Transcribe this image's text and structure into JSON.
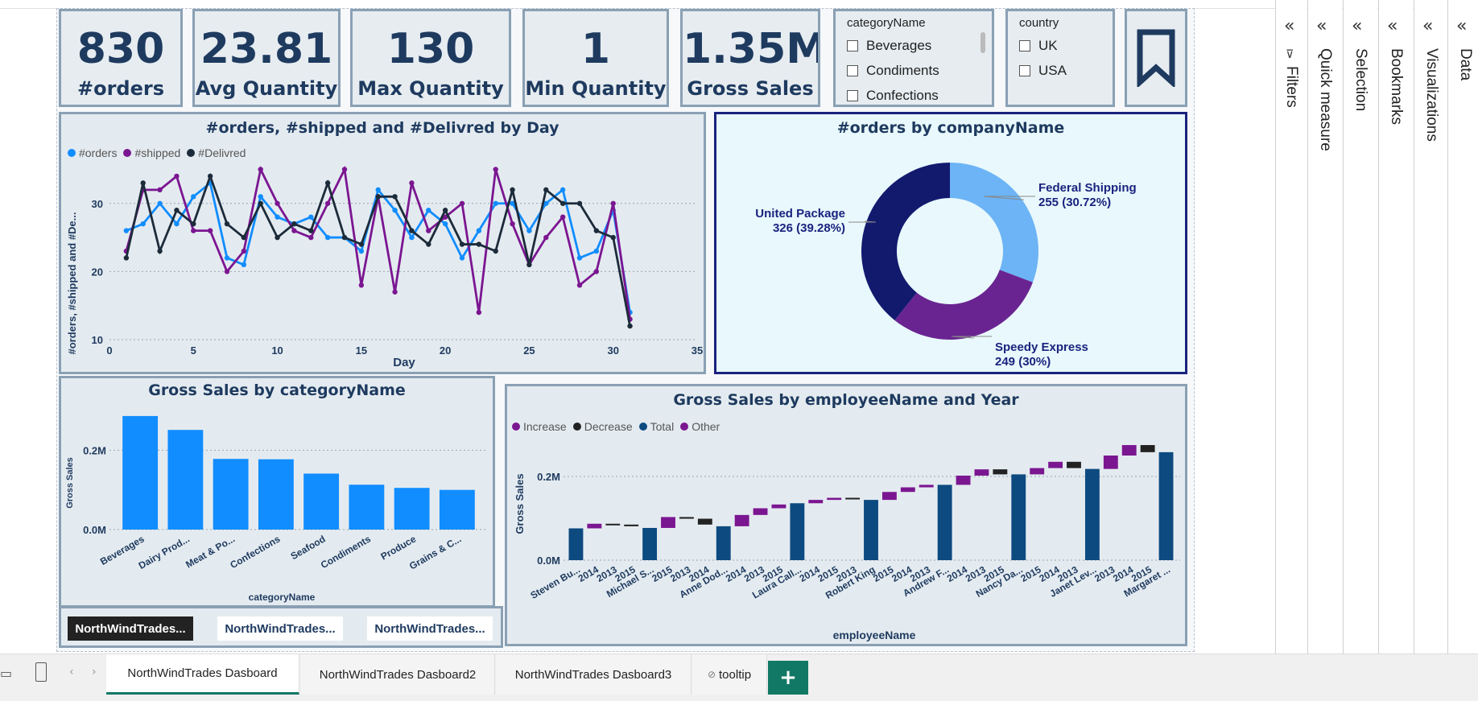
{
  "kpis": [
    {
      "value": "830",
      "label": "#orders"
    },
    {
      "value": "23.81",
      "label": "Avg Quantity"
    },
    {
      "value": "130",
      "label": "Max Quantity"
    },
    {
      "value": "1",
      "label": "Min Quantity"
    },
    {
      "value": "1.35M",
      "label": "Gross Sales"
    }
  ],
  "slicers": {
    "category": {
      "title": "categoryName",
      "items": [
        "Beverages",
        "Condiments",
        "Confections"
      ]
    },
    "country": {
      "title": "country",
      "items": [
        "UK",
        "USA"
      ]
    }
  },
  "line_chart": {
    "title": "#orders, #shipped and #Delivred by Day",
    "ylabel": "#orders, #shipped and #De...",
    "xlabel": "Day",
    "legend": [
      "#orders",
      "#shipped",
      "#Delivred"
    ],
    "xticks": [
      "0",
      "5",
      "10",
      "15",
      "20",
      "25",
      "30",
      "35"
    ],
    "yticks": [
      "10",
      "20",
      "30"
    ]
  },
  "donut_chart": {
    "title": "#orders by companyName",
    "slices": [
      {
        "name": "Federal Shipping",
        "label": "255 (30.72%)",
        "value": 255,
        "color": "#6cb4f5"
      },
      {
        "name": "Speedy Express",
        "label": "249 (30%)",
        "value": 249,
        "color": "#6a2491"
      },
      {
        "name": "United Package",
        "label": "326 (39.28%)",
        "value": 326,
        "color": "#121a6e"
      }
    ]
  },
  "bar_chart": {
    "title": "Gross Sales by categoryName",
    "ylabel": "Gross Sales",
    "xlabel": "categoryName",
    "yticks": [
      "0.0M",
      "0.2M"
    ]
  },
  "waterfall": {
    "title": "Gross Sales by employeeName and Year",
    "ylabel": "Gross Sales",
    "xlabel": "employeeName",
    "legend": [
      "Increase",
      "Decrease",
      "Total",
      "Other"
    ],
    "yticks": [
      "0.0M",
      "0.2M"
    ],
    "labels": [
      "Steven Bu...",
      "2014",
      "2013",
      "2015",
      "Michael S...",
      "2015",
      "2013",
      "2014",
      "Anne Dod...",
      "2014",
      "2013",
      "2015",
      "Laura Call...",
      "2014",
      "2015",
      "2013",
      "Robert King",
      "2015",
      "2014",
      "2013",
      "Andrew F...",
      "2014",
      "2013",
      "2015",
      "Nancy Da...",
      "2015",
      "2014",
      "2013",
      "Janet Lev...",
      "2013",
      "2014",
      "2015",
      "Margaret ..."
    ]
  },
  "nav_buttons": [
    "NorthWindTrades...",
    "NorthWindTrades...",
    "NorthWindTrades..."
  ],
  "right_panes": [
    "Filters",
    "Quick measure",
    "Selection",
    "Bookmarks",
    "Visualizations",
    "Data"
  ],
  "tabs": [
    "NorthWindTrades Dasboard",
    "NorthWindTrades Dasboard2",
    "NorthWindTrades Dasboard3",
    "tooltip"
  ],
  "add_tab": "+",
  "chart_data": [
    {
      "type": "line",
      "title": "#orders, #shipped and #Delivred by Day",
      "xlabel": "Day",
      "ylabel": "#orders, #shipped and #De...",
      "xlim": [
        0,
        35
      ],
      "ylim": [
        10,
        36
      ],
      "x": [
        1,
        2,
        3,
        4,
        5,
        6,
        7,
        8,
        9,
        10,
        11,
        12,
        13,
        14,
        15,
        16,
        17,
        18,
        19,
        20,
        21,
        22,
        23,
        24,
        25,
        26,
        27,
        28,
        29,
        30,
        31
      ],
      "series": [
        {
          "name": "#orders",
          "color": "#118dff",
          "values": [
            26,
            27,
            30,
            27,
            31,
            33,
            22,
            21,
            31,
            28,
            27,
            28,
            25,
            25,
            23,
            32,
            29,
            25,
            29,
            27,
            22,
            26,
            30,
            30,
            26,
            30,
            32,
            22,
            23,
            29,
            14
          ]
        },
        {
          "name": "#shipped",
          "color": "#7b1691",
          "values": [
            23,
            32,
            32,
            34,
            26,
            26,
            20,
            23,
            35,
            30,
            26,
            25,
            30,
            35,
            18,
            31,
            17,
            33,
            26,
            28,
            30,
            14,
            35,
            27,
            21,
            25,
            28,
            18,
            20,
            30,
            13
          ]
        },
        {
          "name": "#Delivred",
          "color": "#1c2b3a",
          "values": [
            22,
            33,
            23,
            29,
            27,
            34,
            27,
            25,
            30,
            25,
            27,
            26,
            33,
            25,
            24,
            31,
            31,
            26,
            24,
            29,
            24,
            24,
            23,
            32,
            21,
            32,
            30,
            30,
            26,
            25,
            12
          ]
        }
      ],
      "legend": "top-left",
      "grid": true
    },
    {
      "type": "pie",
      "title": "#orders by companyName",
      "categories": [
        "Federal Shipping",
        "Speedy Express",
        "United Package"
      ],
      "values": [
        255,
        249,
        326
      ]
    },
    {
      "type": "bar",
      "title": "Gross Sales by categoryName",
      "xlabel": "categoryName",
      "ylabel": "Gross Sales",
      "categories": [
        "Beverages",
        "Dairy Prod...",
        "Meat & Po...",
        "Confections",
        "Seafood",
        "Condiments",
        "Produce",
        "Grains & C..."
      ],
      "values": [
        0.286,
        0.251,
        0.178,
        0.177,
        0.141,
        0.113,
        0.105,
        0.1
      ],
      "ylim": [
        0,
        0.3
      ],
      "unit": "M"
    },
    {
      "type": "bar",
      "subtype": "waterfall",
      "title": "Gross Sales by employeeName and Year",
      "xlabel": "employeeName",
      "ylabel": "Gross Sales",
      "ylim": [
        0,
        0.3
      ],
      "unit": "M",
      "steps": [
        {
          "label": "Steven Bu...",
          "kind": "Total",
          "start": 0,
          "end": 0.076
        },
        {
          "label": "2014",
          "kind": "Increase",
          "start": 0.076,
          "end": 0.087
        },
        {
          "label": "2013",
          "kind": "Decrease",
          "start": 0.087,
          "end": 0.085
        },
        {
          "label": "2015",
          "kind": "Decrease",
          "start": 0.085,
          "end": 0.081
        },
        {
          "label": "Michael S...",
          "kind": "Total",
          "start": 0,
          "end": 0.077
        },
        {
          "label": "2015",
          "kind": "Increase",
          "start": 0.077,
          "end": 0.103
        },
        {
          "label": "2013",
          "kind": "Decrease",
          "start": 0.103,
          "end": 0.099
        },
        {
          "label": "2014",
          "kind": "Decrease",
          "start": 0.099,
          "end": 0.085
        },
        {
          "label": "Anne Dod...",
          "kind": "Total",
          "start": 0,
          "end": 0.081
        },
        {
          "label": "2014",
          "kind": "Increase",
          "start": 0.081,
          "end": 0.108
        },
        {
          "label": "2013",
          "kind": "Increase",
          "start": 0.108,
          "end": 0.124
        },
        {
          "label": "2015",
          "kind": "Increase",
          "start": 0.124,
          "end": 0.133
        },
        {
          "label": "Laura Call...",
          "kind": "Total",
          "start": 0,
          "end": 0.136
        },
        {
          "label": "2014",
          "kind": "Increase",
          "start": 0.136,
          "end": 0.144
        },
        {
          "label": "2015",
          "kind": "Increase",
          "start": 0.144,
          "end": 0.149
        },
        {
          "label": "2013",
          "kind": "Decrease",
          "start": 0.149,
          "end": 0.146
        },
        {
          "label": "Robert King",
          "kind": "Total",
          "start": 0,
          "end": 0.144
        },
        {
          "label": "2015",
          "kind": "Increase",
          "start": 0.144,
          "end": 0.163
        },
        {
          "label": "2014",
          "kind": "Increase",
          "start": 0.163,
          "end": 0.174
        },
        {
          "label": "2013",
          "kind": "Increase",
          "start": 0.174,
          "end": 0.18
        },
        {
          "label": "Andrew F...",
          "kind": "Total",
          "start": 0,
          "end": 0.18
        },
        {
          "label": "2014",
          "kind": "Increase",
          "start": 0.18,
          "end": 0.202
        },
        {
          "label": "2013",
          "kind": "Increase",
          "start": 0.202,
          "end": 0.217
        },
        {
          "label": "2015",
          "kind": "Decrease",
          "start": 0.217,
          "end": 0.205
        },
        {
          "label": "Nancy Da...",
          "kind": "Total",
          "start": 0,
          "end": 0.205
        },
        {
          "label": "2015",
          "kind": "Increase",
          "start": 0.205,
          "end": 0.22
        },
        {
          "label": "2014",
          "kind": "Increase",
          "start": 0.22,
          "end": 0.235
        },
        {
          "label": "2013",
          "kind": "Decrease",
          "start": 0.235,
          "end": 0.22
        },
        {
          "label": "Janet Lev...",
          "kind": "Total",
          "start": 0,
          "end": 0.218
        },
        {
          "label": "2013",
          "kind": "Increase",
          "start": 0.218,
          "end": 0.25
        },
        {
          "label": "2014",
          "kind": "Increase",
          "start": 0.25,
          "end": 0.275
        },
        {
          "label": "2015",
          "kind": "Decrease",
          "start": 0.275,
          "end": 0.258
        },
        {
          "label": "Margaret ...",
          "kind": "Total",
          "start": 0,
          "end": 0.258
        }
      ],
      "colors": {
        "Increase": "#7b1691",
        "Decrease": "#222222",
        "Total": "#0d4a80"
      }
    }
  ]
}
